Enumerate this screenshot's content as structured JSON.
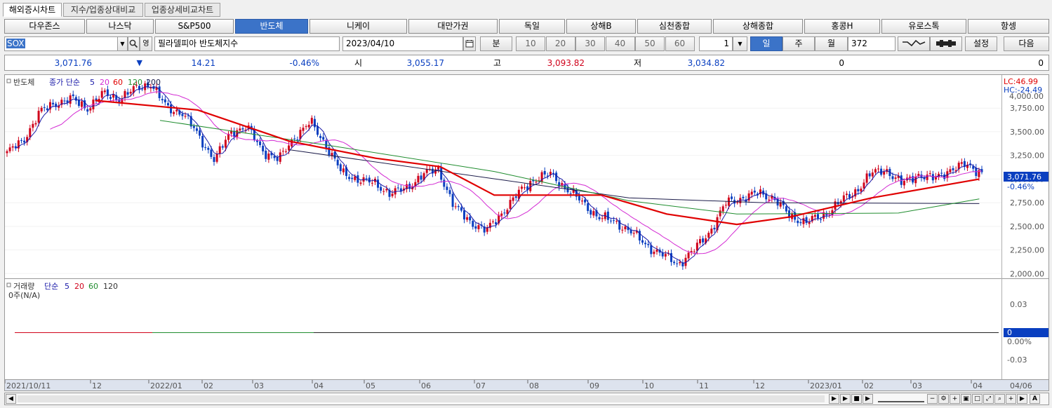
{
  "tabs": [
    {
      "label": "해외증시차트",
      "active": true
    },
    {
      "label": "지수/업종상대비교",
      "active": false
    },
    {
      "label": "업종상세비교차트",
      "active": false
    }
  ],
  "indices": [
    "다우존스",
    "나스닥",
    "S&P500",
    "반도체",
    "니케이",
    "대만가권",
    "독일",
    "상해B",
    "심천종합",
    "상해종합",
    "홍콩H",
    "유로스톡",
    "항셍"
  ],
  "active_index": "반도체",
  "toolbar": {
    "symbol": "SOX",
    "name": "필라델피아 반도체지수",
    "date": "2023/04/10",
    "min_label": "분",
    "periods": [
      "10",
      "20",
      "30",
      "40",
      "50",
      "60"
    ],
    "unit_value": "1",
    "day_label": "일",
    "week_label": "주",
    "month_label": "월",
    "count": "372",
    "settings_label": "설정",
    "next_label": "다음"
  },
  "quote": {
    "price": "3,071.76",
    "arrow": "▼",
    "change": "14.21",
    "change_pct": "-0.46%",
    "open_label": "시",
    "open": "3,055.17",
    "high_label": "고",
    "high": "3,093.82",
    "low_label": "저",
    "low": "3,034.82",
    "volume": "0",
    "amount": "0"
  },
  "colors": {
    "up": "#d0021b",
    "down": "#0a3fc0",
    "ma5": "#1a1aa8",
    "ma20": "#d32ad3",
    "ma60": "#e00000",
    "ma120": "#1f8c2e",
    "ma200": "#1c1c4a",
    "accent": "#3b73c8"
  },
  "price_panel": {
    "legend_name": "반도체",
    "legend_type": "종가 단순",
    "ma": [
      "5",
      "20",
      "60",
      "120",
      "200"
    ],
    "lc": "LC:46.99",
    "hc": "HC:-24.49",
    "last_price": "3,071.76",
    "last_pct": "-0.46%",
    "top_clip": "4,000.00"
  },
  "volume_panel": {
    "legend_name": "거래량",
    "legend_type": "단순",
    "ma": [
      "5",
      "20",
      "60",
      "120"
    ],
    "note": "0주(N/A)",
    "y_labels": [
      "0.03",
      "0.00%",
      "-0.03"
    ],
    "last_value": "0"
  },
  "x_labels": [
    "2021/10/11",
    "12",
    "2022/01",
    "02",
    "03",
    "04",
    "05",
    "06",
    "07",
    "08",
    "09",
    "10",
    "11",
    "12",
    "2023/01",
    "02",
    "03",
    "04",
    "04/06"
  ],
  "chart_data": {
    "type": "candlestick",
    "y_ticks": [
      2000,
      2250,
      2500,
      2750,
      3000,
      3250,
      3500,
      3750
    ],
    "ylim": [
      1950,
      4100
    ],
    "x": [
      "2021-10",
      "2021-11",
      "2021-12",
      "2022-01",
      "2022-02",
      "2022-03",
      "2022-04",
      "2022-05",
      "2022-06",
      "2022-07",
      "2022-08",
      "2022-09",
      "2022-10",
      "2022-11",
      "2022-12",
      "2023-01",
      "2023-02",
      "2023-03",
      "2023-04"
    ],
    "close_path": [
      3280,
      3400,
      3700,
      3800,
      3850,
      3750,
      3900,
      3850,
      3950,
      4010,
      3750,
      3700,
      3450,
      3200,
      3500,
      3550,
      3300,
      3200,
      3450,
      3600,
      3350,
      3050,
      3000,
      2950,
      2850,
      2900,
      3050,
      3100,
      2700,
      2550,
      2450,
      2650,
      2850,
      3000,
      3050,
      2900,
      2750,
      2600,
      2550,
      2450,
      2300,
      2200,
      2100,
      2250,
      2450,
      2750,
      2800,
      2850,
      2800,
      2600,
      2550,
      2600,
      2750,
      2850,
      3050,
      3100,
      2950,
      3050,
      3000,
      3100,
      3150,
      3071.76
    ],
    "ma200": [
      [
        5.2,
        3310
      ],
      [
        11.5,
        2800
      ],
      [
        14,
        2750
      ],
      [
        18,
        2740
      ]
    ],
    "ma120": [
      [
        2.8,
        3620
      ],
      [
        6,
        3350
      ],
      [
        9,
        3080
      ],
      [
        11.5,
        2770
      ],
      [
        13.5,
        2630
      ],
      [
        16.5,
        2640
      ],
      [
        18,
        2790
      ]
    ],
    "ma60": [
      [
        1.6,
        3830
      ],
      [
        3.5,
        3730
      ],
      [
        5.2,
        3400
      ],
      [
        6.8,
        3220
      ],
      [
        8,
        3130
      ],
      [
        9,
        2830
      ],
      [
        11,
        2830
      ],
      [
        12.2,
        2630
      ],
      [
        13.5,
        2520
      ],
      [
        14.5,
        2600
      ],
      [
        16,
        2800
      ],
      [
        18,
        3000
      ]
    ]
  }
}
